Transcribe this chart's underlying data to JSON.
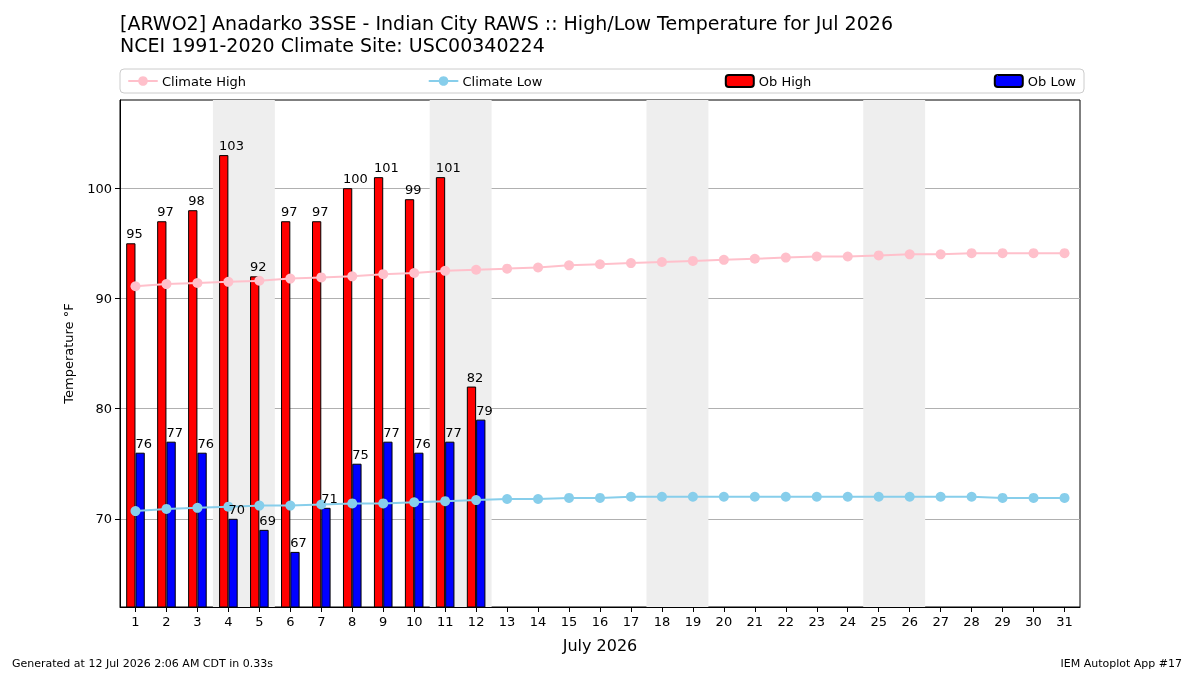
{
  "chart_data": {
    "type": "bar",
    "title": "[ARWO2] Anadarko 3SSE - Indian City RAWS :: High/Low Temperature for Jul 2026",
    "subtitle": "NCEI 1991-2020 Climate Site: USC00340224",
    "xlabel": "July 2026",
    "ylabel": "Temperature °F",
    "x": [
      1,
      2,
      3,
      4,
      5,
      6,
      7,
      8,
      9,
      10,
      11,
      12,
      13,
      14,
      15,
      16,
      17,
      18,
      19,
      20,
      21,
      22,
      23,
      24,
      25,
      26,
      27,
      28,
      29,
      30,
      31
    ],
    "xlim": [
      0.5,
      31.5
    ],
    "xticks": [
      1,
      2,
      3,
      4,
      5,
      6,
      7,
      8,
      9,
      10,
      11,
      12,
      13,
      14,
      15,
      16,
      17,
      18,
      19,
      20,
      21,
      22,
      23,
      24,
      25,
      26,
      27,
      28,
      29,
      30,
      31
    ],
    "ylim": [
      62,
      108
    ],
    "yticks": [
      70,
      80,
      90,
      100
    ],
    "series": [
      {
        "name": "Climate High",
        "type": "line",
        "color": "#ffc0cb",
        "values": [
          91.1,
          91.3,
          91.4,
          91.5,
          91.6,
          91.8,
          91.9,
          92.0,
          92.2,
          92.3,
          92.5,
          92.6,
          92.7,
          92.8,
          93.0,
          93.1,
          93.2,
          93.3,
          93.4,
          93.5,
          93.6,
          93.7,
          93.8,
          93.8,
          93.9,
          94.0,
          94.0,
          94.1,
          94.1,
          94.1,
          94.1
        ]
      },
      {
        "name": "Climate Low",
        "type": "line",
        "color": "#87ceeb",
        "values": [
          70.7,
          70.9,
          71.0,
          71.1,
          71.2,
          71.2,
          71.3,
          71.4,
          71.4,
          71.5,
          71.6,
          71.7,
          71.8,
          71.8,
          71.9,
          71.9,
          72.0,
          72.0,
          72.0,
          72.0,
          72.0,
          72.0,
          72.0,
          72.0,
          72.0,
          72.0,
          72.0,
          72.0,
          71.9,
          71.9,
          71.9
        ]
      },
      {
        "name": "Ob High",
        "color": "#ff0000",
        "x": [
          1,
          2,
          3,
          4,
          5,
          6,
          7,
          8,
          9,
          10,
          11,
          12
        ],
        "values": [
          95,
          97,
          98,
          103,
          92,
          97,
          97,
          100,
          101,
          99,
          101,
          82
        ],
        "value_labels": [
          "95",
          "97",
          "98",
          "103",
          "92",
          "97",
          "97",
          "100",
          "101",
          "99",
          "101",
          "82"
        ]
      },
      {
        "name": "Ob Low",
        "color": "#0000ff",
        "x": [
          1,
          2,
          3,
          4,
          5,
          6,
          7,
          8,
          9,
          10,
          11,
          12
        ],
        "values": [
          76,
          77,
          76,
          70,
          69,
          67,
          71,
          75,
          77,
          76,
          77,
          79
        ],
        "value_labels": [
          "76",
          "77",
          "76",
          "70",
          "69",
          "67",
          "71",
          "75",
          "77",
          "76",
          "77",
          "79"
        ]
      }
    ],
    "bands": [
      {
        "axis": "x",
        "from": 3.5,
        "to": 5.5,
        "color": "#eeeeee"
      },
      {
        "axis": "x",
        "from": 10.5,
        "to": 12.5,
        "color": "#eeeeee"
      },
      {
        "axis": "x",
        "from": 17.5,
        "to": 19.5,
        "color": "#eeeeee"
      },
      {
        "axis": "x",
        "from": 24.5,
        "to": 26.5,
        "color": "#eeeeee"
      }
    ],
    "grid": "y",
    "legend": "top",
    "marker": "circle",
    "line_style": "solid",
    "annotations": [
      "Generated at 12 Jul 2026 2:06 AM CDT in 0.33s",
      "IEM Autoplot App #17"
    ]
  }
}
